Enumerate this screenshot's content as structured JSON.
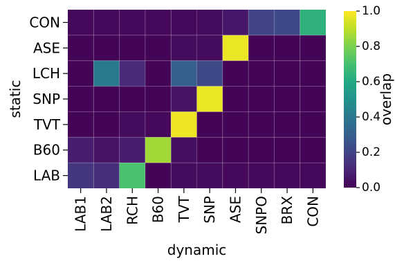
{
  "chart_data": {
    "type": "heatmap",
    "xlabel": "dynamic",
    "ylabel": "static",
    "x_categories": [
      "LAB1",
      "LAB2",
      "RCH",
      "B60",
      "TVT",
      "SNP",
      "ASE",
      "SNPO",
      "BRX",
      "CON"
    ],
    "y_categories": [
      "CON",
      "ASE",
      "LCH",
      "SNP",
      "TVT",
      "B60",
      "LAB"
    ],
    "values": [
      [
        0.02,
        0.02,
        0.02,
        0.02,
        0.02,
        0.03,
        0.06,
        0.2,
        0.22,
        0.64
      ],
      [
        0.01,
        0.01,
        0.01,
        0.01,
        0.03,
        0.03,
        0.97,
        0.01,
        0.01,
        0.01
      ],
      [
        0.01,
        0.41,
        0.12,
        0.01,
        0.3,
        0.22,
        0.01,
        0.01,
        0.01,
        0.01
      ],
      [
        0.01,
        0.01,
        0.01,
        0.01,
        0.05,
        0.97,
        0.01,
        0.01,
        0.01,
        0.01
      ],
      [
        0.01,
        0.01,
        0.03,
        0.02,
        0.98,
        0.01,
        0.01,
        0.01,
        0.01,
        0.01
      ],
      [
        0.08,
        0.05,
        0.08,
        0.86,
        0.04,
        0.01,
        0.01,
        0.01,
        0.01,
        0.01
      ],
      [
        0.16,
        0.13,
        0.71,
        0.01,
        0.03,
        0.03,
        0.02,
        0.02,
        0.02,
        0.02
      ]
    ],
    "colorbar": {
      "label": "overlap",
      "colormap": "viridis",
      "range": [
        0.0,
        1.0
      ],
      "ticks": [
        "0.0",
        "0.2",
        "0.4",
        "0.6",
        "0.8",
        "1.0"
      ]
    }
  }
}
